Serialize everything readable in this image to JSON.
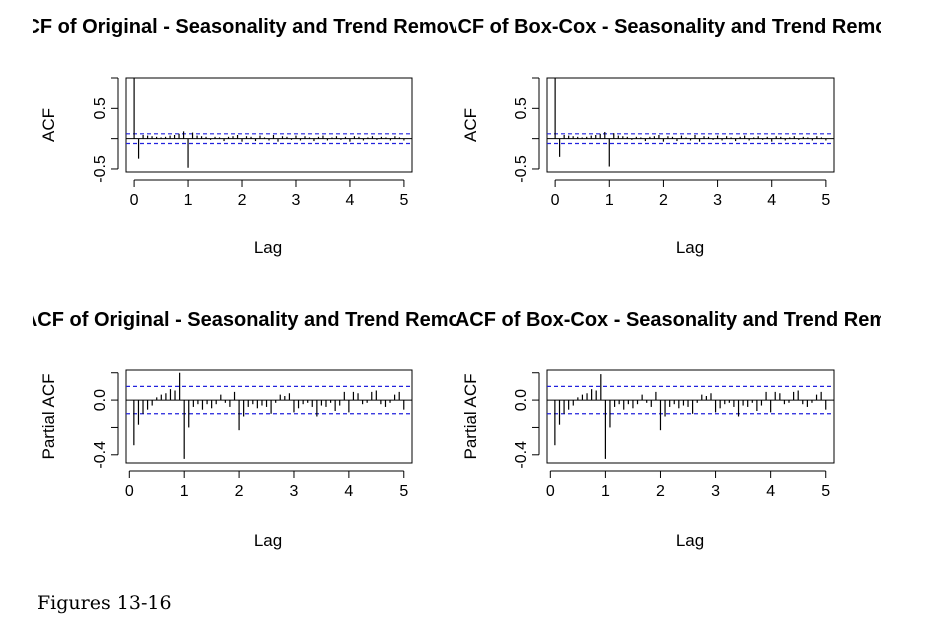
{
  "figure": {
    "caption": "Figures 13-16"
  },
  "chart_data": [
    {
      "type": "bar",
      "title": "ACF of Original - Seasonality and Trend Removed",
      "xlabel": "Lag",
      "ylabel": "ACF",
      "xlim": [
        -0.15,
        5.15
      ],
      "ylim": [
        -0.55,
        1.0
      ],
      "xticks": [
        "0",
        "1",
        "2",
        "3",
        "4",
        "5"
      ],
      "yticks": [
        "-0.5",
        "0.5"
      ],
      "ci": 0.08,
      "grid": false,
      "lags": [
        0,
        0.083,
        0.167,
        0.25,
        0.333,
        0.417,
        0.5,
        0.583,
        0.667,
        0.75,
        0.833,
        0.917,
        1,
        1.083,
        1.167,
        1.25,
        1.333,
        1.417,
        1.5,
        1.583,
        1.667,
        1.75,
        1.833,
        1.917,
        2,
        2.083,
        2.167,
        2.25,
        2.333,
        2.417,
        2.5,
        2.583,
        2.667,
        2.75,
        2.833,
        2.917,
        3,
        3.083,
        3.167,
        3.25,
        3.333,
        3.417,
        3.5,
        3.583,
        3.667,
        3.75,
        3.833,
        3.917,
        4,
        4.083,
        4.167,
        4.25,
        4.333,
        4.417,
        4.5,
        4.583,
        4.667,
        4.75,
        4.833,
        4.917,
        5
      ],
      "values": [
        1,
        -0.33,
        0.06,
        0.05,
        0.04,
        0.03,
        0.02,
        0.03,
        0.05,
        0.06,
        0.08,
        0.12,
        -0.48,
        0.1,
        0.05,
        0.04,
        0.03,
        -0.02,
        0.03,
        0.02,
        -0.04,
        0.03,
        0.04,
        0.06,
        -0.05,
        0.04,
        0.03,
        -0.04,
        0.05,
        0.02,
        -0.03,
        0.06,
        -0.05,
        0.04,
        0.03,
        -0.02,
        0.05,
        -0.03,
        0.04,
        0.02,
        -0.04,
        0.03,
        0.05,
        -0.03,
        0.02,
        0.04,
        -0.02,
        0.03,
        -0.05,
        0.04,
        0.03,
        -0.03,
        0.02,
        0.04,
        -0.02,
        0.03,
        0.02,
        -0.03,
        0.04,
        0.02,
        -0.03
      ]
    },
    {
      "type": "bar",
      "title": "ACF of Box-Cox - Seasonality and Trend Removed",
      "xlabel": "Lag",
      "ylabel": "ACF",
      "xlim": [
        -0.15,
        5.15
      ],
      "ylim": [
        -0.55,
        1.0
      ],
      "xticks": [
        "0",
        "1",
        "2",
        "3",
        "4",
        "5"
      ],
      "yticks": [
        "-0.5",
        "0.5"
      ],
      "ci": 0.08,
      "grid": false,
      "lags": [
        0,
        0.083,
        0.167,
        0.25,
        0.333,
        0.417,
        0.5,
        0.583,
        0.667,
        0.75,
        0.833,
        0.917,
        1,
        1.083,
        1.167,
        1.25,
        1.333,
        1.417,
        1.5,
        1.583,
        1.667,
        1.75,
        1.833,
        1.917,
        2,
        2.083,
        2.167,
        2.25,
        2.333,
        2.417,
        2.5,
        2.583,
        2.667,
        2.75,
        2.833,
        2.917,
        3,
        3.083,
        3.167,
        3.25,
        3.333,
        3.417,
        3.5,
        3.583,
        3.667,
        3.75,
        3.833,
        3.917,
        4,
        4.083,
        4.167,
        4.25,
        4.333,
        4.417,
        4.5,
        4.583,
        4.667,
        4.75,
        4.833,
        4.917,
        5
      ],
      "values": [
        1,
        -0.3,
        0.06,
        0.05,
        0.04,
        0.03,
        0.02,
        0.03,
        0.05,
        0.06,
        0.08,
        0.11,
        -0.46,
        0.09,
        0.05,
        0.04,
        0.03,
        -0.02,
        0.03,
        0.02,
        -0.04,
        0.03,
        0.04,
        0.06,
        -0.05,
        0.04,
        0.03,
        -0.04,
        0.05,
        0.02,
        -0.03,
        0.06,
        -0.05,
        0.04,
        0.03,
        -0.02,
        0.05,
        -0.03,
        0.04,
        0.02,
        -0.04,
        0.03,
        0.05,
        -0.03,
        0.02,
        0.04,
        -0.02,
        0.03,
        -0.05,
        0.04,
        0.03,
        -0.03,
        0.02,
        0.04,
        -0.02,
        0.03,
        0.02,
        -0.03,
        0.04,
        0.02,
        -0.03
      ]
    },
    {
      "type": "bar",
      "title": "PACF of Original - Seasonality and Trend Removed",
      "xlabel": "Lag",
      "ylabel": "Partial ACF",
      "xlim": [
        -0.06,
        5.15
      ],
      "ylim": [
        -0.46,
        0.22
      ],
      "xticks": [
        "0",
        "1",
        "2",
        "3",
        "4",
        "5"
      ],
      "yticks": [
        "-0.4",
        "0.0"
      ],
      "ci": 0.1,
      "grid": false,
      "lags": [
        0.083,
        0.167,
        0.25,
        0.333,
        0.417,
        0.5,
        0.583,
        0.667,
        0.75,
        0.833,
        0.917,
        1,
        1.083,
        1.167,
        1.25,
        1.333,
        1.417,
        1.5,
        1.583,
        1.667,
        1.75,
        1.833,
        1.917,
        2,
        2.083,
        2.167,
        2.25,
        2.333,
        2.417,
        2.5,
        2.583,
        2.667,
        2.75,
        2.833,
        2.917,
        3,
        3.083,
        3.167,
        3.25,
        3.333,
        3.417,
        3.5,
        3.583,
        3.667,
        3.75,
        3.833,
        3.917,
        4,
        4.083,
        4.167,
        4.25,
        4.333,
        4.417,
        4.5,
        4.583,
        4.667,
        4.75,
        4.833,
        4.917,
        5
      ],
      "values": [
        -0.33,
        -0.18,
        -0.1,
        -0.07,
        -0.04,
        0.02,
        0.04,
        0.05,
        0.08,
        0.07,
        0.2,
        -0.43,
        -0.2,
        -0.05,
        -0.03,
        -0.07,
        -0.03,
        -0.06,
        -0.03,
        0.04,
        -0.02,
        -0.05,
        0.06,
        -0.22,
        -0.12,
        -0.05,
        -0.03,
        -0.06,
        -0.04,
        -0.05,
        -0.1,
        -0.02,
        0.04,
        0.03,
        0.05,
        -0.09,
        -0.06,
        -0.03,
        -0.02,
        -0.05,
        -0.12,
        -0.04,
        -0.05,
        -0.02,
        -0.08,
        -0.04,
        0.06,
        -0.09,
        0.06,
        0.05,
        -0.03,
        -0.02,
        0.06,
        0.07,
        -0.03,
        -0.05,
        -0.02,
        0.04,
        0.06,
        -0.07
      ]
    },
    {
      "type": "bar",
      "title": "PACF of Box-Cox - Seasonality and Trend Removed",
      "xlabel": "Lag",
      "ylabel": "Partial ACF",
      "xlim": [
        -0.06,
        5.15
      ],
      "ylim": [
        -0.46,
        0.22
      ],
      "xticks": [
        "0",
        "1",
        "2",
        "3",
        "4",
        "5"
      ],
      "yticks": [
        "-0.4",
        "0.0"
      ],
      "ci": 0.1,
      "grid": false,
      "lags": [
        0.083,
        0.167,
        0.25,
        0.333,
        0.417,
        0.5,
        0.583,
        0.667,
        0.75,
        0.833,
        0.917,
        1,
        1.083,
        1.167,
        1.25,
        1.333,
        1.417,
        1.5,
        1.583,
        1.667,
        1.75,
        1.833,
        1.917,
        2,
        2.083,
        2.167,
        2.25,
        2.333,
        2.417,
        2.5,
        2.583,
        2.667,
        2.75,
        2.833,
        2.917,
        3,
        3.083,
        3.167,
        3.25,
        3.333,
        3.417,
        3.5,
        3.583,
        3.667,
        3.75,
        3.833,
        3.917,
        4,
        4.083,
        4.167,
        4.25,
        4.333,
        4.417,
        4.5,
        4.583,
        4.667,
        4.75,
        4.833,
        4.917,
        5
      ],
      "values": [
        -0.33,
        -0.18,
        -0.1,
        -0.07,
        -0.04,
        0.02,
        0.04,
        0.05,
        0.08,
        0.07,
        0.19,
        -0.43,
        -0.2,
        -0.05,
        -0.03,
        -0.07,
        -0.03,
        -0.06,
        -0.03,
        0.04,
        -0.02,
        -0.05,
        0.06,
        -0.22,
        -0.12,
        -0.05,
        -0.03,
        -0.06,
        -0.04,
        -0.05,
        -0.1,
        -0.02,
        0.04,
        0.03,
        0.05,
        -0.09,
        -0.06,
        -0.03,
        -0.02,
        -0.05,
        -0.12,
        -0.04,
        -0.05,
        -0.02,
        -0.08,
        -0.04,
        0.06,
        -0.09,
        0.06,
        0.05,
        -0.03,
        -0.02,
        0.06,
        0.07,
        -0.03,
        -0.05,
        -0.02,
        0.04,
        0.06,
        -0.07
      ]
    }
  ]
}
